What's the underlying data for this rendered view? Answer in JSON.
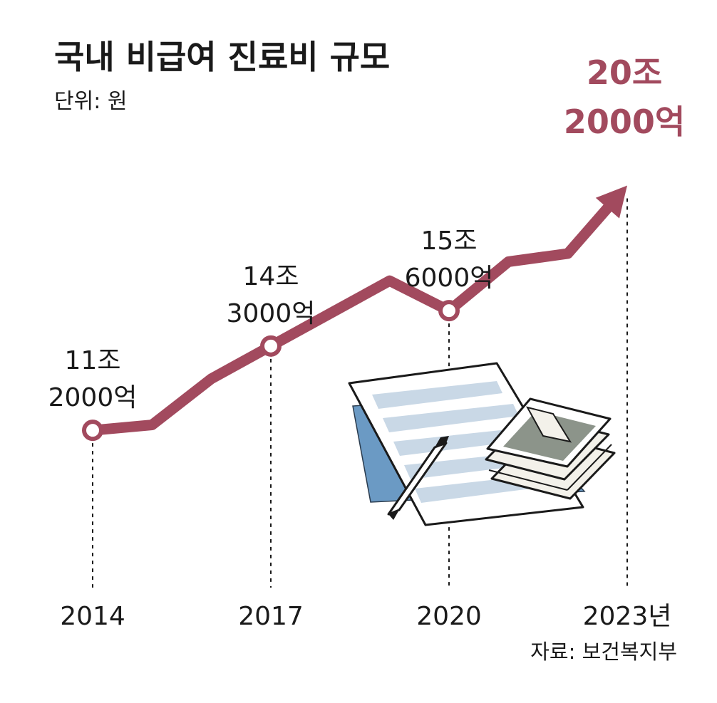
{
  "title": "국내 비급여 진료비 규모",
  "unit_label": "단위: 원",
  "source": "자료: 보건복지부",
  "colors": {
    "line": "#a24a5e",
    "highlight": "#a24a5e",
    "text": "#1a1a1a"
  },
  "chart_data": {
    "type": "line",
    "title": "국내 비급여 진료비 규모",
    "unit": "원",
    "x_tick_labels": [
      "2014",
      "2017",
      "2020",
      "2023년"
    ],
    "xlim": [
      2014,
      2023
    ],
    "ylim": [
      10,
      21
    ],
    "y_unit": "조 원",
    "x": [
      2014,
      2015,
      2016,
      2017,
      2018,
      2019,
      2020,
      2021,
      2022,
      2023
    ],
    "values": [
      11.2,
      11.4,
      13.1,
      14.3,
      15.5,
      16.7,
      15.6,
      17.4,
      17.7,
      20.2
    ],
    "labeled_points": [
      {
        "x": 2014,
        "value": 11.2,
        "label_line1": "11조",
        "label_line2": "2000억"
      },
      {
        "x": 2017,
        "value": 14.3,
        "label_line1": "14조",
        "label_line2": "3000억"
      },
      {
        "x": 2020,
        "value": 15.6,
        "label_line1": "15조",
        "label_line2": "6000억"
      },
      {
        "x": 2023,
        "value": 20.2,
        "label_line1": "20조",
        "label_line2": "2000억",
        "highlight": true
      }
    ],
    "grid": false,
    "legend": "none"
  },
  "illustration": {
    "icon": "medical-bill-and-money-icon"
  }
}
